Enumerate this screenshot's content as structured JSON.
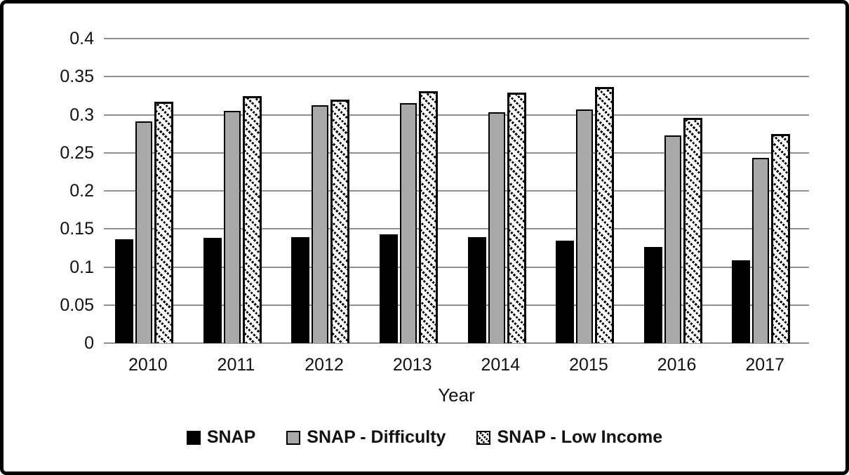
{
  "chart_data": {
    "type": "bar",
    "title": "",
    "xlabel": "Year",
    "ylabel": "",
    "categories": [
      "2010",
      "2011",
      "2012",
      "2013",
      "2014",
      "2015",
      "2016",
      "2017"
    ],
    "series": [
      {
        "name": "SNAP",
        "style": "solid-black",
        "color": "#000000",
        "values": [
          0.136,
          0.138,
          0.139,
          0.143,
          0.139,
          0.135,
          0.126,
          0.109
        ]
      },
      {
        "name": "SNAP - Difficulty",
        "style": "solid-gray",
        "color": "#a9a9a9",
        "values": [
          0.291,
          0.305,
          0.312,
          0.315,
          0.303,
          0.307,
          0.273,
          0.243
        ]
      },
      {
        "name": "SNAP - Low Income",
        "style": "diagonal-hatch",
        "color": "#ffffff",
        "values": [
          0.317,
          0.324,
          0.32,
          0.331,
          0.329,
          0.336,
          0.296,
          0.275
        ]
      }
    ],
    "ylim": [
      0,
      0.4
    ],
    "ytick_step": 0.05,
    "ytick_labels": [
      "0",
      "0.05",
      "0.1",
      "0.15",
      "0.2",
      "0.25",
      "0.3",
      "0.35",
      "0.4"
    ],
    "grid": "horizontal",
    "gridline_color": "#8f8f8f",
    "legend_position": "bottom",
    "frame_border_color": "#000000",
    "background_color": "#ffffff"
  }
}
